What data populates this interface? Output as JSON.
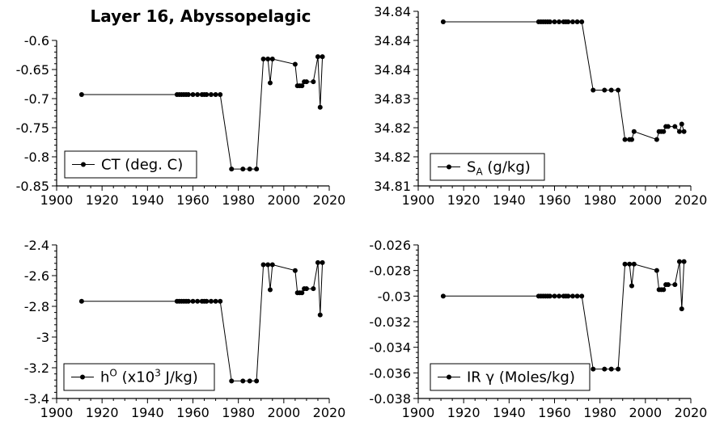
{
  "chart_data": [
    {
      "type": "line",
      "title": "Layer 16, Abyssopelagic",
      "xlabel": "",
      "ylabel": "",
      "xlim": [
        1900,
        2020
      ],
      "ylim": [
        -0.85,
        -0.6
      ],
      "xticks": [
        "1900",
        "1920",
        "1940",
        "1960",
        "1980",
        "2000",
        "2020"
      ],
      "yticks": [
        "-0.6",
        "-0.65",
        "-0.7",
        "-0.75",
        "-0.8",
        "-0.85"
      ],
      "grid": false,
      "legend_position": "bottom-left",
      "series": [
        {
          "name": "CT (deg. C)",
          "x": [
            1911,
            1953,
            1954,
            1955,
            1956,
            1957,
            1958,
            1960,
            1962,
            1964,
            1965,
            1966,
            1968,
            1970,
            1972,
            1977,
            1982,
            1985,
            1988,
            1991,
            1993,
            1994,
            1995,
            2005,
            2006,
            2007,
            2008,
            2009,
            2010,
            2013,
            2015,
            2016,
            2017
          ],
          "values": [
            -0.693,
            -0.693,
            -0.693,
            -0.693,
            -0.693,
            -0.693,
            -0.693,
            -0.693,
            -0.693,
            -0.693,
            -0.693,
            -0.693,
            -0.693,
            -0.693,
            -0.693,
            -0.821,
            -0.821,
            -0.821,
            -0.821,
            -0.632,
            -0.632,
            -0.673,
            -0.632,
            -0.641,
            -0.678,
            -0.678,
            -0.678,
            -0.671,
            -0.671,
            -0.671,
            -0.628,
            -0.715,
            -0.628
          ]
        }
      ]
    },
    {
      "type": "line",
      "title": "",
      "xlabel": "",
      "ylabel": "",
      "xlim": [
        1900,
        2020
      ],
      "ylim": [
        34.81,
        34.845
      ],
      "xticks": [
        "1900",
        "1920",
        "1940",
        "1960",
        "1980",
        "2000",
        "2020"
      ],
      "yticks": [
        "34.84",
        "34.84",
        "34.84",
        "34.83",
        "34.82",
        "34.82",
        "34.81"
      ],
      "grid": false,
      "legend_position": "bottom-left",
      "series": [
        {
          "name": "SA (g/kg)",
          "legend_main": "S",
          "legend_sub": "A",
          "legend_rest": " (g/kg)",
          "x": [
            1911,
            1953,
            1954,
            1955,
            1956,
            1957,
            1958,
            1960,
            1962,
            1964,
            1965,
            1966,
            1968,
            1970,
            1972,
            1977,
            1982,
            1985,
            1988,
            1991,
            1993,
            1994,
            1995,
            2005,
            2006,
            2007,
            2008,
            2009,
            2010,
            2013,
            2015,
            2016,
            2017
          ],
          "values": [
            34.8429,
            34.8429,
            34.8429,
            34.8429,
            34.8429,
            34.8429,
            34.8429,
            34.8429,
            34.8429,
            34.8429,
            34.8429,
            34.8429,
            34.8429,
            34.8429,
            34.8429,
            34.8292,
            34.8292,
            34.8292,
            34.8292,
            34.8193,
            34.8193,
            34.8193,
            34.8209,
            34.8193,
            34.8209,
            34.8209,
            34.8209,
            34.8219,
            34.8219,
            34.8219,
            34.8209,
            34.8224,
            34.8209
          ]
        }
      ]
    },
    {
      "type": "line",
      "title": "",
      "xlabel": "",
      "ylabel": "",
      "xlim": [
        1900,
        2020
      ],
      "ylim": [
        -3.4,
        -2.4
      ],
      "xticks": [
        "1900",
        "1920",
        "1940",
        "1960",
        "1980",
        "2000",
        "2020"
      ],
      "yticks": [
        "-2.4",
        "-2.6",
        "-2.8",
        "-3",
        "-3.2",
        "-3.4"
      ],
      "grid": false,
      "legend_position": "bottom-left",
      "series": [
        {
          "name": "hO (x103 J/kg)",
          "legend_main": "h",
          "legend_sup": "O",
          "legend_mid": " (x10",
          "legend_sup2": "3",
          "legend_rest": " J/kg)",
          "x": [
            1911,
            1953,
            1954,
            1955,
            1956,
            1957,
            1958,
            1960,
            1962,
            1964,
            1965,
            1966,
            1968,
            1970,
            1972,
            1977,
            1982,
            1985,
            1988,
            1991,
            1993,
            1994,
            1995,
            2005,
            2006,
            2007,
            2008,
            2009,
            2010,
            2013,
            2015,
            2016,
            2017
          ],
          "values": [
            -2.767,
            -2.767,
            -2.767,
            -2.767,
            -2.767,
            -2.767,
            -2.767,
            -2.767,
            -2.767,
            -2.767,
            -2.767,
            -2.767,
            -2.767,
            -2.767,
            -2.767,
            -3.286,
            -3.286,
            -3.286,
            -3.286,
            -2.529,
            -2.529,
            -2.692,
            -2.529,
            -2.567,
            -2.712,
            -2.712,
            -2.712,
            -2.685,
            -2.685,
            -2.685,
            -2.515,
            -2.856,
            -2.515
          ]
        }
      ]
    },
    {
      "type": "line",
      "title": "",
      "xlabel": "",
      "ylabel": "",
      "xlim": [
        1900,
        2020
      ],
      "ylim": [
        -0.038,
        -0.026
      ],
      "xticks": [
        "1900",
        "1920",
        "1940",
        "1960",
        "1980",
        "2000",
        "2020"
      ],
      "yticks": [
        "-0.026",
        "-0.028",
        "-0.03",
        "-0.032",
        "-0.034",
        "-0.036",
        "-0.038"
      ],
      "grid": false,
      "legend_position": "bottom-left",
      "series": [
        {
          "name": "IR γ (Moles/kg)",
          "x": [
            1911,
            1953,
            1954,
            1955,
            1956,
            1957,
            1958,
            1960,
            1962,
            1964,
            1965,
            1966,
            1968,
            1970,
            1972,
            1977,
            1982,
            1985,
            1988,
            1991,
            1993,
            1994,
            1995,
            2005,
            2006,
            2007,
            2008,
            2009,
            2010,
            2013,
            2015,
            2016,
            2017
          ],
          "values": [
            -0.03,
            -0.03,
            -0.03,
            -0.03,
            -0.03,
            -0.03,
            -0.03,
            -0.03,
            -0.03,
            -0.03,
            -0.03,
            -0.03,
            -0.03,
            -0.03,
            -0.03,
            -0.0357,
            -0.0357,
            -0.0357,
            -0.0357,
            -0.0275,
            -0.0275,
            -0.0292,
            -0.0275,
            -0.028,
            -0.0295,
            -0.0295,
            -0.0295,
            -0.0291,
            -0.0291,
            -0.0291,
            -0.0273,
            -0.031,
            -0.0273
          ]
        }
      ]
    }
  ]
}
